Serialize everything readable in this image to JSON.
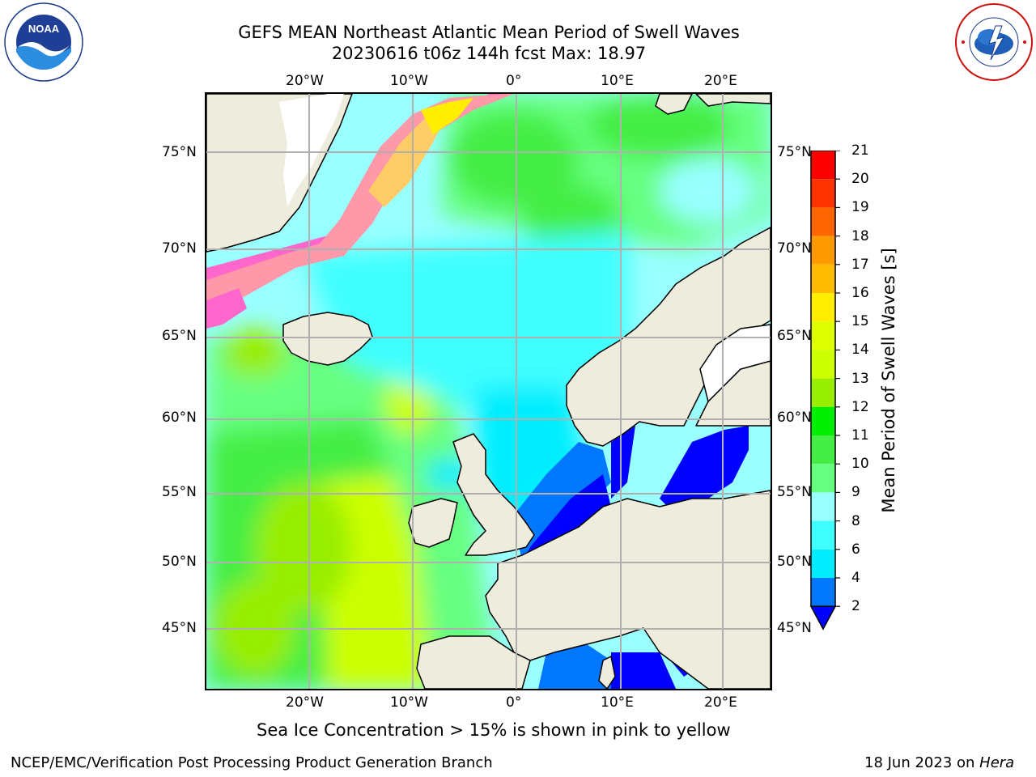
{
  "title_line1": "GEFS MEAN Northeast Atlantic Mean Period of Swell Waves",
  "title_line2": "20230616 t06z 144h fcst   Max: 18.97",
  "logos": {
    "left": "noaa-logo",
    "right": "nws-logo"
  },
  "map": {
    "type": "filled-contour-map",
    "region": "Northeast Atlantic",
    "lon_range": [
      -30,
      25
    ],
    "lat_range": [
      41,
      78
    ],
    "lon_labels": [
      "20°W",
      "10°W",
      "0°",
      "10°E",
      "20°E"
    ],
    "lat_labels": [
      "75°N",
      "70°N",
      "65°N",
      "60°N",
      "55°N",
      "50°N",
      "45°N"
    ],
    "grid": true
  },
  "colorbar": {
    "title": "Mean Period of Swell Waves [s]",
    "levels": [
      "2",
      "4",
      "6",
      "8",
      "9",
      "10",
      "11",
      "12",
      "13",
      "14",
      "15",
      "16",
      "17",
      "18",
      "19",
      "20",
      "21"
    ],
    "colors": [
      "#0000ff",
      "#0077ff",
      "#00eeff",
      "#40ffff",
      "#99ffff",
      "#66ff80",
      "#44ee44",
      "#00ee00",
      "#99ee00",
      "#ccff00",
      "#ddff00",
      "#ffee00",
      "#ffbb00",
      "#ff9900",
      "#ff6600",
      "#ff3300",
      "#ff0000"
    ],
    "extend": "min"
  },
  "note": "Sea Ice Concentration > 15% is shown in pink to yellow",
  "footer_left": "NCEP/EMC/Verification Post Processing Product Generation Branch",
  "footer_date": "18 Jun 2023 on ",
  "footer_host": "Hera"
}
